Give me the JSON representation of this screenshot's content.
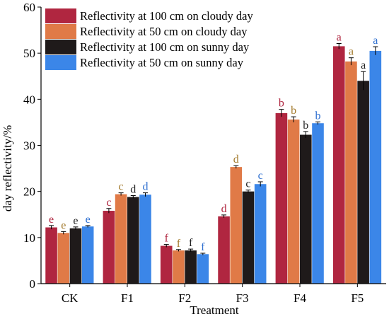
{
  "chart_data": {
    "type": "bar",
    "xlabel": "Treatment",
    "ylabel": "day reflectivity/%",
    "ylim": [
      0,
      60
    ],
    "yticks": [
      0,
      10,
      20,
      30,
      40,
      50,
      60
    ],
    "categories": [
      "CK",
      "F1",
      "F2",
      "F3",
      "F4",
      "F5"
    ],
    "series": [
      {
        "name": "Reflectivity at 100 cm on cloudy day",
        "color": "#b02640",
        "label_color": "#b02640",
        "values": [
          12.2,
          15.8,
          8.2,
          14.6,
          37.0,
          51.5
        ],
        "errors": [
          0.4,
          0.5,
          0.3,
          0.3,
          0.8,
          0.6
        ],
        "letters": [
          "e",
          "c",
          "f",
          "d",
          "b",
          "a"
        ]
      },
      {
        "name": "Reflectivity at 50 cm on cloudy day",
        "color": "#e07a47",
        "label_color": "#a37a2c",
        "values": [
          11.0,
          19.4,
          7.2,
          25.3,
          35.6,
          48.2
        ],
        "errors": [
          0.3,
          0.3,
          0.2,
          0.3,
          0.6,
          0.8
        ],
        "letters": [
          "e",
          "c",
          "f",
          "d",
          "b",
          "a"
        ]
      },
      {
        "name": "Reflectivity at 100 cm on sunny day",
        "color": "#1f1a1a",
        "label_color": "#222222",
        "values": [
          12.0,
          18.8,
          7.2,
          20.0,
          32.3,
          44.0
        ],
        "errors": [
          0.3,
          0.3,
          0.3,
          0.3,
          0.7,
          2.0
        ],
        "letters": [
          "e",
          "d",
          "f",
          "c",
          "b",
          "a"
        ]
      },
      {
        "name": "Reflectivity at 50 cm on sunny day",
        "color": "#3b86e8",
        "label_color": "#2e6fd0",
        "values": [
          12.4,
          19.3,
          6.4,
          21.6,
          34.8,
          50.5
        ],
        "errors": [
          0.2,
          0.4,
          0.2,
          0.5,
          0.3,
          0.9
        ],
        "letters": [
          "e",
          "d",
          "f",
          "c",
          "b",
          "a"
        ]
      }
    ],
    "legend": "top-left"
  }
}
